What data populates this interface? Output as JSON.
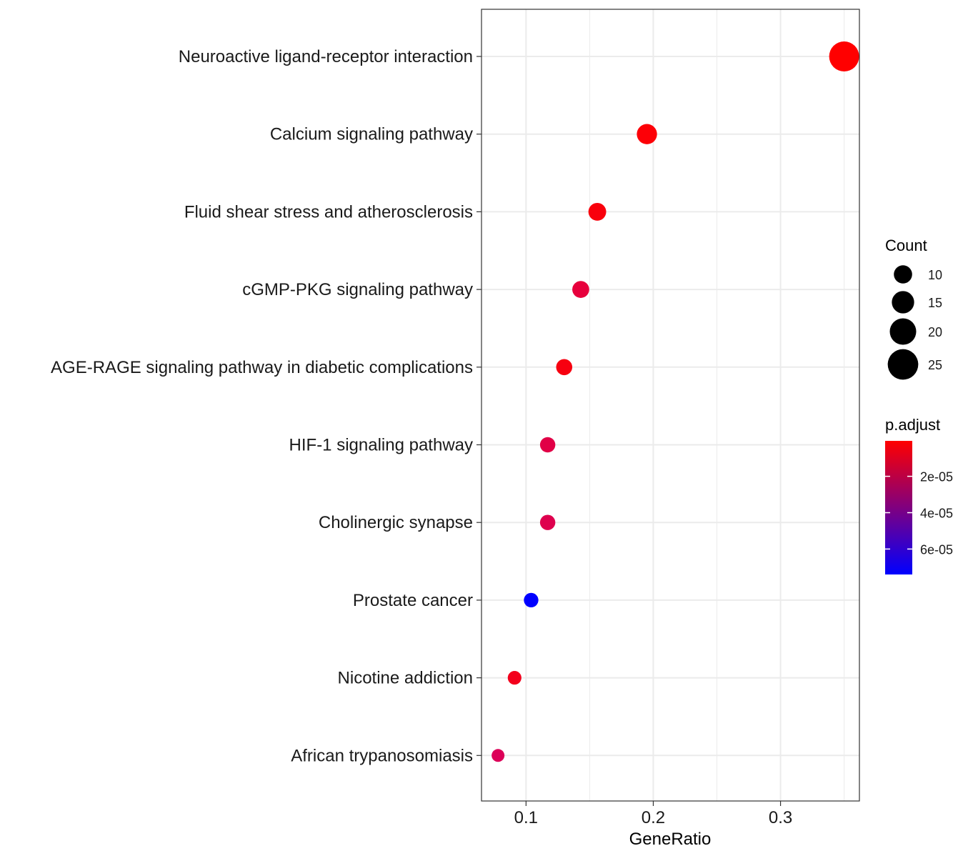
{
  "chart_data": {
    "type": "scatter",
    "xlabel": "GeneRatio",
    "ylabel": "",
    "xlim": [
      0.065,
      0.362
    ],
    "x_ticks": [
      {
        "value": 0.1,
        "label": "0.1"
      },
      {
        "value": 0.2,
        "label": "0.2"
      },
      {
        "value": 0.3,
        "label": "0.3"
      }
    ],
    "grid": true,
    "legend_position": "right",
    "points": [
      {
        "term": "Neuroactive ligand-receptor interaction",
        "x": 0.35,
        "count": 27,
        "p_adjust": 5e-07,
        "color": "#ff0000"
      },
      {
        "term": "Calcium signaling pathway",
        "x": 0.195,
        "count": 15,
        "p_adjust": 2e-06,
        "color": "#fd0007"
      },
      {
        "term": "Fluid shear stress and atherosclerosis",
        "x": 0.156,
        "count": 12,
        "p_adjust": 4e-06,
        "color": "#f9000c"
      },
      {
        "term": "cGMP-PKG signaling pathway",
        "x": 0.143,
        "count": 11,
        "p_adjust": 2.5e-05,
        "color": "#e7003c"
      },
      {
        "term": "AGE-RAGE signaling pathway in diabetic complications",
        "x": 0.13,
        "count": 10,
        "p_adjust": 7e-06,
        "color": "#f70010"
      },
      {
        "term": "HIF-1 signaling pathway",
        "x": 0.117,
        "count": 9,
        "p_adjust": 3e-05,
        "color": "#e10046"
      },
      {
        "term": "Cholinergic synapse",
        "x": 0.117,
        "count": 9,
        "p_adjust": 3.3e-05,
        "color": "#de004e"
      },
      {
        "term": "Prostate cancer",
        "x": 0.104,
        "count": 8,
        "p_adjust": 7.4e-05,
        "color": "#0000ff"
      },
      {
        "term": "Nicotine addiction",
        "x": 0.091,
        "count": 7,
        "p_adjust": 1e-05,
        "color": "#f3001c"
      },
      {
        "term": "African trypanosomiasis",
        "x": 0.078,
        "count": 6,
        "p_adjust": 3.5e-05,
        "color": "#dc0058"
      }
    ],
    "size_legend": {
      "title": "Count",
      "entries": [
        {
          "value": 10,
          "label": "10"
        },
        {
          "value": 15,
          "label": "15"
        },
        {
          "value": 20,
          "label": "20"
        },
        {
          "value": 25,
          "label": "25"
        }
      ],
      "color": "#000000"
    },
    "color_legend": {
      "title": "p.adjust",
      "gradient_low_color": "#ff0000",
      "gradient_high_color": "#0000ff",
      "range": [
        5e-07,
        7.4e-05
      ],
      "ticks": [
        {
          "value": 2e-05,
          "label": "2e-05"
        },
        {
          "value": 4e-05,
          "label": "4e-05"
        },
        {
          "value": 6e-05,
          "label": "6e-05"
        }
      ]
    }
  }
}
